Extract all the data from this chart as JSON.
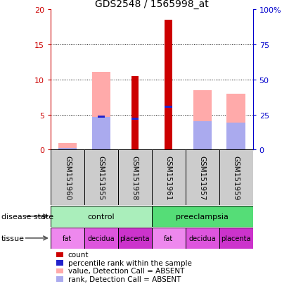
{
  "title": "GDS2548 / 1565998_at",
  "samples": [
    "GSM151960",
    "GSM151955",
    "GSM151958",
    "GSM151961",
    "GSM151957",
    "GSM151959"
  ],
  "count_values": [
    0,
    0,
    10.5,
    18.5,
    0,
    0
  ],
  "percentile_rank_values": [
    0,
    4.7,
    4.4,
    6.1,
    0,
    0
  ],
  "absent_value_values": [
    0.9,
    11.1,
    0,
    0,
    8.5,
    8.0
  ],
  "absent_rank_values": [
    0.2,
    4.7,
    0,
    0,
    4.0,
    3.8
  ],
  "count_color": "#cc0000",
  "percentile_color": "#2222cc",
  "absent_value_color": "#ffaaaa",
  "absent_rank_color": "#aaaaee",
  "ylim_left": [
    0,
    20
  ],
  "ylim_right": [
    0,
    100
  ],
  "yticks_left": [
    0,
    5,
    10,
    15,
    20
  ],
  "yticks_right": [
    0,
    25,
    50,
    75,
    100
  ],
  "ytick_labels_right": [
    "0",
    "25",
    "50",
    "75",
    "100%"
  ],
  "disease_state": [
    {
      "label": "control",
      "start": 0,
      "end": 3,
      "color": "#aaeebb"
    },
    {
      "label": "preeclampsia",
      "start": 3,
      "end": 6,
      "color": "#55dd77"
    }
  ],
  "tissue": [
    {
      "label": "fat",
      "start": 0,
      "end": 1,
      "color": "#ee88ee"
    },
    {
      "label": "decidua",
      "start": 1,
      "end": 2,
      "color": "#dd55dd"
    },
    {
      "label": "placenta",
      "start": 2,
      "end": 3,
      "color": "#cc33cc"
    },
    {
      "label": "fat",
      "start": 3,
      "end": 4,
      "color": "#ee88ee"
    },
    {
      "label": "decidua",
      "start": 4,
      "end": 5,
      "color": "#dd55dd"
    },
    {
      "label": "placenta",
      "start": 5,
      "end": 6,
      "color": "#cc33cc"
    }
  ],
  "legend_items": [
    {
      "label": "count",
      "color": "#cc0000"
    },
    {
      "label": "percentile rank within the sample",
      "color": "#2222cc"
    },
    {
      "label": "value, Detection Call = ABSENT",
      "color": "#ffaaaa"
    },
    {
      "label": "rank, Detection Call = ABSENT",
      "color": "#aaaaee"
    }
  ],
  "grid_yticks": [
    5,
    10,
    15
  ],
  "left_axis_color": "#cc0000",
  "right_axis_color": "#0000cc",
  "sample_bg_color": "#cccccc",
  "plot_bg_color": "#ffffff"
}
